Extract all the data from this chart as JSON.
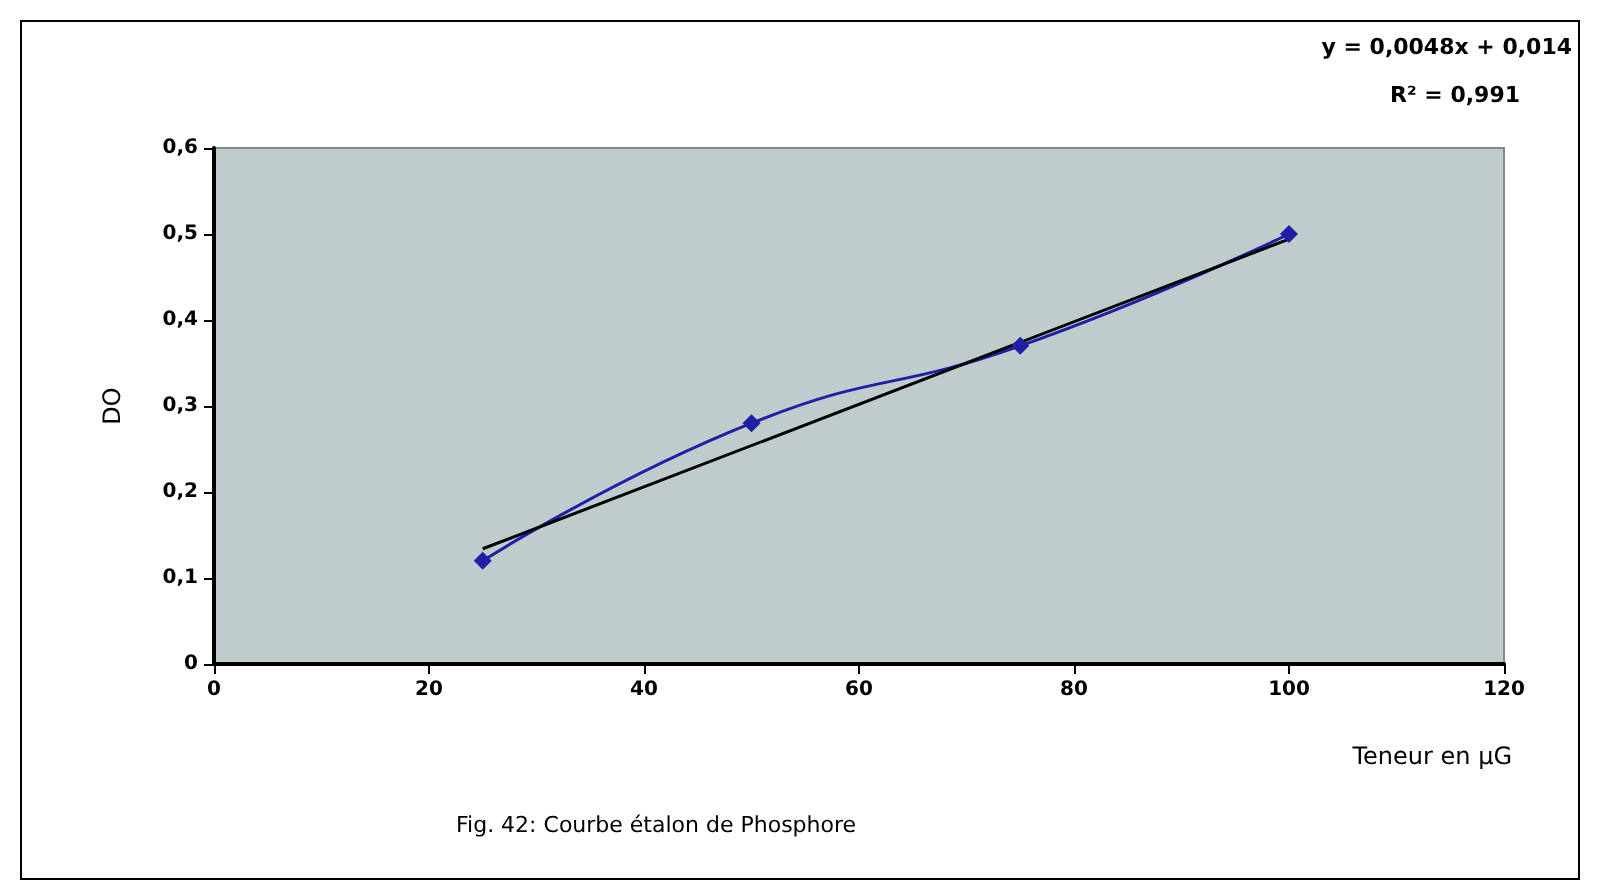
{
  "chart_data": {
    "type": "line",
    "xlabel": "Teneur en µG",
    "ylabel": "DO",
    "annotations": [
      "y = 0,0048x + 0,014",
      "R² = 0,991",
      "Fig. 42: Courbe étalon de Phosphore"
    ],
    "series": [
      {
        "color": "#1f1fa8",
        "x": [
          25,
          50,
          75,
          100
        ],
        "values": [
          0.12,
          0.28,
          0.37,
          0.5
        ],
        "marker": "diamond"
      },
      {
        "type": "line",
        "color": "#000000",
        "x": [
          25,
          100
        ],
        "values": [
          0.134,
          0.494
        ],
        "marker": "none"
      }
    ],
    "xlim": [
      0,
      120
    ],
    "xticks": [
      0,
      20,
      40,
      60,
      80,
      100,
      120
    ],
    "ylim": [
      0,
      0.6
    ],
    "yticks": [
      0,
      {
        "value": 0.1,
        "label": "0,1"
      },
      {
        "value": 0.2,
        "label": "0,2"
      },
      {
        "value": 0.3,
        "label": "0,3"
      },
      {
        "value": 0.4,
        "label": "0,4"
      },
      {
        "value": 0.5,
        "label": "0,5"
      },
      {
        "value": 0.6,
        "label": "0,6"
      }
    ],
    "grid": false
  }
}
